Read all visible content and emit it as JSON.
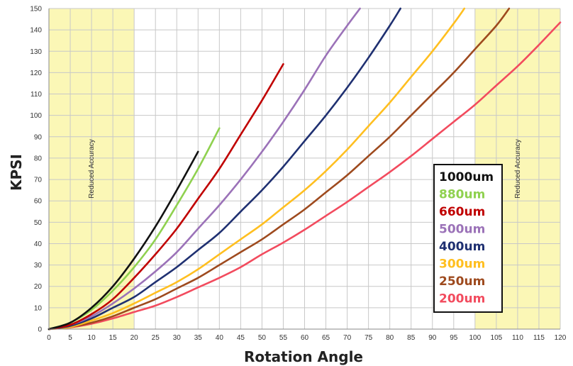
{
  "chart_data": {
    "type": "line",
    "title": "",
    "xlabel": "Rotation Angle",
    "ylabel": "KPSI",
    "xlim": [
      0,
      120
    ],
    "ylim": [
      0,
      150
    ],
    "xticks": [
      0,
      5,
      10,
      15,
      20,
      25,
      30,
      35,
      40,
      45,
      50,
      55,
      60,
      65,
      70,
      75,
      80,
      85,
      90,
      95,
      100,
      105,
      110,
      115,
      120
    ],
    "yticks": [
      0,
      10,
      20,
      30,
      40,
      50,
      60,
      70,
      80,
      90,
      100,
      110,
      120,
      130,
      140,
      150
    ],
    "grid": true,
    "legend_position": "right",
    "shaded_regions": [
      {
        "x_start": 0,
        "x_end": 20,
        "label": "Reduced Accuracy",
        "color": "#fbf7b6"
      },
      {
        "x_start": 100,
        "x_end": 120,
        "label": "Reduced Accuracy",
        "color": "#fbf7b6"
      }
    ],
    "series": [
      {
        "name": "1000um",
        "color": "#111111",
        "x": [
          0,
          5,
          10,
          15,
          20,
          25,
          30,
          35
        ],
        "y": [
          0,
          3,
          10,
          20,
          33,
          48,
          65,
          83
        ]
      },
      {
        "name": "880um",
        "color": "#8fd14f",
        "x": [
          0,
          5,
          10,
          15,
          20,
          25,
          30,
          35,
          40
        ],
        "y": [
          0,
          3,
          9,
          18,
          29,
          42,
          58,
          75,
          94
        ]
      },
      {
        "name": "660um",
        "color": "#c00000",
        "x": [
          0,
          5,
          10,
          15,
          20,
          25,
          30,
          35,
          40,
          45,
          50,
          55
        ],
        "y": [
          0,
          2,
          7,
          14,
          24,
          35,
          47,
          61,
          75,
          91,
          107,
          124
        ]
      },
      {
        "name": "500um",
        "color": "#9b72b8",
        "x": [
          0,
          5,
          10,
          15,
          20,
          25,
          30,
          35,
          40,
          45,
          50,
          55,
          60,
          65,
          70,
          73
        ],
        "y": [
          0,
          2,
          6,
          12,
          19,
          27,
          36,
          47,
          58,
          70,
          83,
          97,
          112,
          128,
          142,
          150
        ]
      },
      {
        "name": "400um",
        "color": "#1f3071",
        "x": [
          0,
          5,
          10,
          15,
          20,
          25,
          30,
          35,
          40,
          45,
          50,
          55,
          60,
          65,
          70,
          75,
          80,
          82.5
        ],
        "y": [
          0,
          1.5,
          5,
          10,
          15,
          22,
          29,
          37,
          45,
          55,
          65,
          76,
          88,
          100,
          113,
          127,
          142,
          150
        ]
      },
      {
        "name": "300um",
        "color": "#ffbf20",
        "x": [
          0,
          5,
          10,
          15,
          20,
          25,
          30,
          35,
          40,
          45,
          50,
          55,
          60,
          65,
          70,
          75,
          80,
          85,
          90,
          95,
          97.5
        ],
        "y": [
          0,
          1,
          4,
          7.5,
          12,
          17,
          22,
          28,
          35,
          42,
          49,
          57,
          65,
          74,
          84,
          95,
          106,
          118,
          130,
          143,
          150
        ]
      },
      {
        "name": "250um",
        "color": "#9e4a1e",
        "x": [
          0,
          5,
          10,
          15,
          20,
          25,
          30,
          35,
          40,
          45,
          50,
          55,
          60,
          65,
          70,
          75,
          80,
          85,
          90,
          95,
          100,
          105,
          108
        ],
        "y": [
          0,
          1,
          3,
          6,
          10,
          14,
          19,
          24,
          30,
          36,
          42,
          49,
          56,
          64,
          72,
          81,
          90,
          100,
          110,
          120,
          131,
          142,
          150
        ]
      },
      {
        "name": "200um",
        "color": "#f24b5e",
        "x": [
          0,
          5,
          10,
          15,
          20,
          25,
          30,
          35,
          40,
          45,
          50,
          55,
          60,
          65,
          70,
          75,
          80,
          85,
          90,
          95,
          100,
          105,
          110,
          115,
          120
        ],
        "y": [
          0,
          0.8,
          2.5,
          5,
          8,
          11,
          15,
          19.5,
          24,
          29,
          35,
          40.5,
          46.5,
          53,
          59.5,
          66.5,
          73.5,
          81,
          89,
          97,
          105,
          114,
          123,
          133,
          143.5
        ]
      }
    ]
  }
}
